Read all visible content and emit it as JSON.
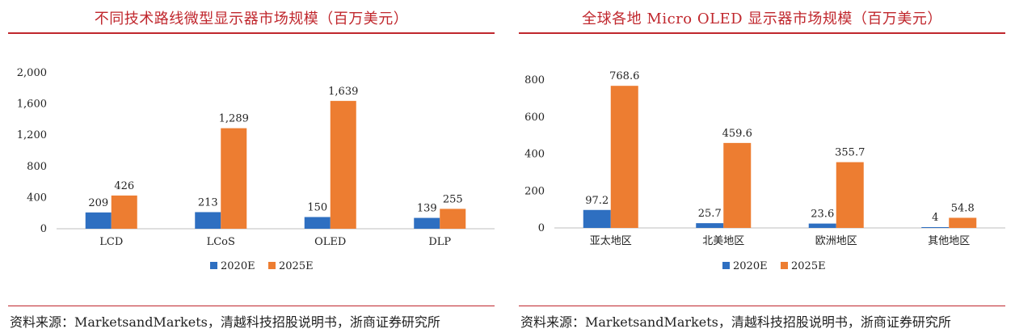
{
  "colors": {
    "series_2020": "#2e6fc1",
    "series_2025": "#ed7d31",
    "title": "#c0272d"
  },
  "left": {
    "title": "不同技术路线微型显示器市场规模（百万美元）",
    "source": "资料来源：MarketsandMarkets，清越科技招股说明书，浙商证券研究所"
  },
  "right": {
    "title": "全球各地 Micro OLED 显示器市场规模（百万美元）",
    "source": "资料来源：MarketsandMarkets，清越科技招股说明书，浙商证券研究所"
  },
  "chart_data": [
    {
      "type": "bar",
      "title": "不同技术路线微型显示器市场规模（百万美元）",
      "categories": [
        "LCD",
        "LCoS",
        "OLED",
        "DLP"
      ],
      "series": [
        {
          "name": "2020E",
          "values": [
            209,
            213,
            150,
            139
          ],
          "labels": [
            "209",
            "213",
            "150",
            "139"
          ]
        },
        {
          "name": "2025E",
          "values": [
            426,
            1289,
            1639,
            255
          ],
          "labels": [
            "426",
            "1,289",
            "1,639",
            "255"
          ]
        }
      ],
      "ylim": [
        0,
        2000
      ],
      "yticks": [
        0,
        400,
        800,
        1200,
        1600,
        2000
      ],
      "ytick_labels": [
        "0",
        "400",
        "800",
        "1,200",
        "1,600",
        "2,000"
      ],
      "legend": "bottom",
      "grid": false
    },
    {
      "type": "bar",
      "title": "全球各地 Micro OLED 显示器市场规模（百万美元）",
      "categories": [
        "亚太地区",
        "北美地区",
        "欧洲地区",
        "其他地区"
      ],
      "series": [
        {
          "name": "2020E",
          "values": [
            97.2,
            25.7,
            23.6,
            4
          ],
          "labels": [
            "97.2",
            "25.7",
            "23.6",
            "4"
          ]
        },
        {
          "name": "2025E",
          "values": [
            768.6,
            459.6,
            355.7,
            54.8
          ],
          "labels": [
            "768.6",
            "459.6",
            "355.7",
            "54.8"
          ]
        }
      ],
      "ylim": [
        0,
        800
      ],
      "yticks": [
        0,
        200,
        400,
        600,
        800
      ],
      "ytick_labels": [
        "0",
        "200",
        "400",
        "600",
        "800"
      ],
      "legend": "bottom",
      "grid": false
    }
  ]
}
